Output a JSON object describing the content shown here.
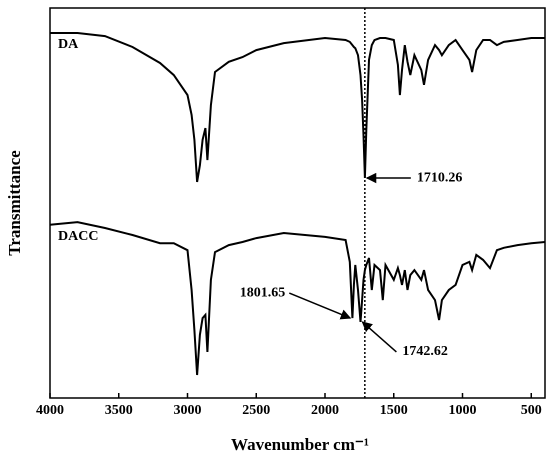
{
  "chart_data": {
    "type": "line",
    "x_label": "Wavenumber cm⁻¹",
    "y_label": "Transmittance",
    "xlim": [
      4000,
      400
    ],
    "ylim": [
      0,
      100
    ],
    "xticks": [
      4000,
      3500,
      3000,
      2500,
      2000,
      1500,
      1000,
      500
    ],
    "x": [
      4000,
      3800,
      3600,
      3400,
      3200,
      3100,
      3000,
      2970,
      2950,
      2930,
      2910,
      2890,
      2870,
      2855,
      2830,
      2800,
      2700,
      2600,
      2500,
      2300,
      2000,
      1850,
      1820,
      1801,
      1790,
      1780,
      1760,
      1742,
      1730,
      1720,
      1710,
      1700,
      1680,
      1660,
      1640,
      1600,
      1580,
      1560,
      1500,
      1470,
      1455,
      1440,
      1420,
      1400,
      1380,
      1350,
      1300,
      1280,
      1250,
      1200,
      1170,
      1150,
      1100,
      1050,
      1000,
      950,
      930,
      900,
      850,
      800,
      750,
      700,
      600,
      500,
      400
    ],
    "series": [
      {
        "name": "DA",
        "color": "#000000",
        "values": [
          93.6,
          93.6,
          92.8,
          90.0,
          85.9,
          82.8,
          77.7,
          72.6,
          66.2,
          55.4,
          59.7,
          66.2,
          69.2,
          61.0,
          75.1,
          83.6,
          86.2,
          87.4,
          89.2,
          91.0,
          92.3,
          91.8,
          91.3,
          90.5,
          90.0,
          89.7,
          87.9,
          82.8,
          76.4,
          67.4,
          56.4,
          68.7,
          86.7,
          90.5,
          91.8,
          92.3,
          92.3,
          92.3,
          91.8,
          85.4,
          77.7,
          84.1,
          90.5,
          86.2,
          82.8,
          87.9,
          84.1,
          80.3,
          86.7,
          90.5,
          89.2,
          87.9,
          90.5,
          91.8,
          89.2,
          86.7,
          83.6,
          89.2,
          91.8,
          91.8,
          90.5,
          91.3,
          91.8,
          92.3,
          92.3
        ]
      },
      {
        "name": "DACC",
        "color": "#000000",
        "values": [
          44.4,
          45.1,
          43.6,
          41.8,
          39.7,
          39.7,
          37.9,
          27.7,
          17.4,
          5.9,
          16.2,
          20.5,
          21.3,
          11.8,
          30.3,
          37.4,
          39.2,
          40.0,
          41.0,
          42.3,
          41.3,
          40.5,
          34.9,
          20.5,
          29.0,
          34.1,
          27.7,
          19.5,
          25.1,
          30.3,
          32.8,
          34.1,
          35.9,
          27.7,
          34.1,
          32.8,
          25.1,
          34.1,
          30.3,
          33.3,
          31.5,
          29.0,
          32.8,
          27.7,
          31.5,
          32.8,
          30.3,
          32.8,
          27.7,
          25.1,
          20.0,
          25.1,
          27.7,
          29.0,
          34.1,
          34.9,
          32.8,
          36.7,
          35.4,
          33.3,
          37.9,
          38.5,
          39.2,
          39.7,
          40.0
        ]
      }
    ],
    "annotations": [
      {
        "text": "1710.26",
        "x": 1710.26,
        "y": 56.4
      },
      {
        "text": "1801.65",
        "x": 1801.65,
        "y": 20.5
      },
      {
        "text": "1742.62",
        "x": 1742.62,
        "y": 19.5
      }
    ]
  }
}
